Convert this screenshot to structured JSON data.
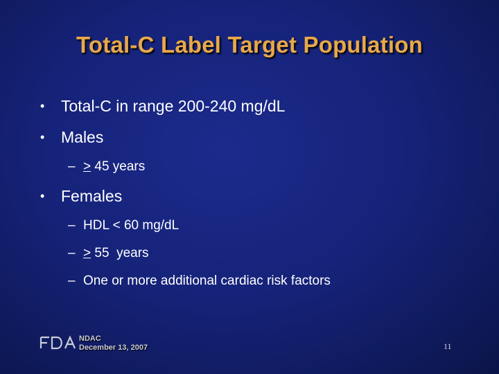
{
  "slide": {
    "title": "Total-C Label Target Population",
    "bullets": [
      {
        "marker": "•",
        "text": "Total-C in range 200-240 mg/dL"
      },
      {
        "marker": "•",
        "text": "Males"
      },
      {
        "marker": "•",
        "text": "Females"
      }
    ],
    "males_sub": [
      {
        "dash": "–",
        "symbol": ">",
        "text": " 45 years"
      }
    ],
    "females_sub": [
      {
        "dash": "–",
        "text": "HDL < 60 mg/dL"
      },
      {
        "dash": "–",
        "symbol": ">",
        "text": " 55  years"
      },
      {
        "dash": "–",
        "text": "One or more additional cardiac risk factors"
      }
    ],
    "footer": {
      "logo": "FDA",
      "line1": "NDAC",
      "line2": "December 13, 2007",
      "page_number": "11"
    },
    "colors": {
      "background": "#16237a",
      "title": "#e8a84a",
      "text": "#ffffff"
    }
  }
}
